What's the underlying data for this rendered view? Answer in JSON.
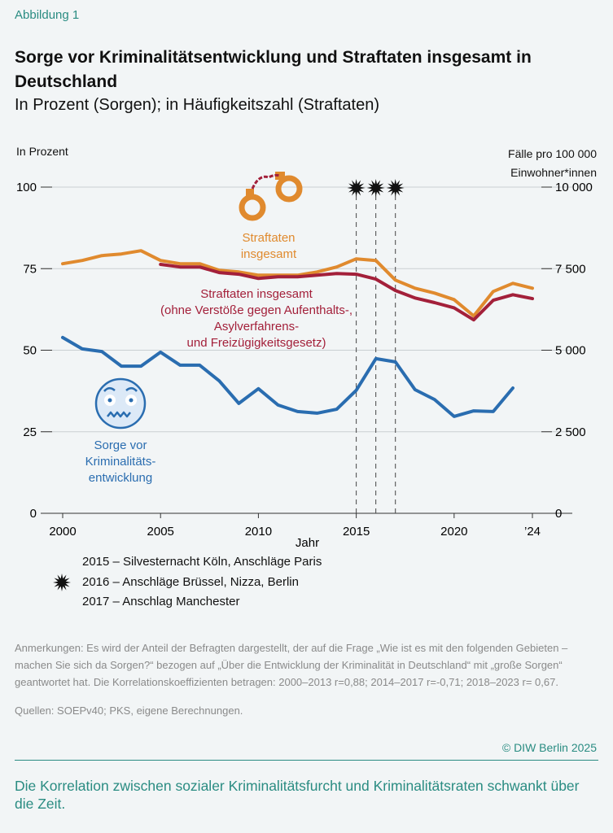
{
  "figure_label": "Abbildung 1",
  "title": "Sorge vor Kriminalitätsentwicklung und Straftaten insgesamt in Deutschland",
  "subtitle": "In Prozent (Sorgen); in Häufigkeitszahl (Straftaten)",
  "legend_events": [
    "2015 – Silvesternacht Köln, Anschläge Paris",
    "2016 – Anschläge Brüssel, Nizza, Berlin",
    "2017 – Anschlag Manchester"
  ],
  "notes": "Anmerkungen: Es wird der Anteil der Befragten dargestellt, der auf die Frage „Wie ist es mit den folgenden Gebieten – machen Sie sich da Sorgen?“ bezogen auf „Über die Entwicklung der Kriminalität in Deutschland“ mit „große Sorgen“ geantwortet hat. Die Korrelationskoeffizienten betragen: 2000–2013 r=0,88; 2014–2017 r=-0,71; 2018–2023 r= 0,67.",
  "sources": "Quellen: SOEPv40; PKS, eigene Berechnungen.",
  "copyright": "© DIW Berlin 2025",
  "takeaway": "Die Korrelation zwischen sozialer Kriminalitätsfurcht und Kriminalitätsraten schwankt über die Zeit.",
  "colors": {
    "accent": "#2a8c82",
    "orange": "#e08a2e",
    "red": "#a3203a",
    "blue": "#2a6db0"
  },
  "chart_data": {
    "type": "line",
    "xlabel": "Jahr",
    "ylabel_left": "In Prozent",
    "ylabel_right": [
      "Fälle pro 100 000",
      "Einwohner*innen"
    ],
    "ylim_left": [
      0,
      100
    ],
    "ylim_right": [
      0,
      10000
    ],
    "xlim": [
      2000,
      2024
    ],
    "x_ticks": [
      "2000",
      "2005",
      "2010",
      "2015",
      "2020",
      "’24"
    ],
    "x_tick_values": [
      2000,
      2005,
      2010,
      2015,
      2020,
      2024
    ],
    "y_ticks_left": [
      "0",
      "25",
      "50",
      "75",
      "100"
    ],
    "y_ticks_right": [
      "0",
      "2 500",
      "5 000",
      "7 500",
      "10 000"
    ],
    "event_years": [
      2015,
      2016,
      2017
    ],
    "series": [
      {
        "name": "Straftaten insgesamt",
        "label_lines": [
          "Straftaten",
          "insgesamt"
        ],
        "axis": "right",
        "color": "#e08a2e",
        "x": [
          2000,
          2001,
          2002,
          2003,
          2004,
          2005,
          2006,
          2007,
          2008,
          2009,
          2010,
          2011,
          2012,
          2013,
          2014,
          2015,
          2016,
          2017,
          2018,
          2019,
          2020,
          2021,
          2022,
          2023,
          2024
        ],
        "values": [
          7650,
          7750,
          7900,
          7950,
          8050,
          7750,
          7650,
          7650,
          7450,
          7400,
          7300,
          7300,
          7300,
          7400,
          7550,
          7800,
          7750,
          7150,
          6900,
          6750,
          6550,
          6050,
          6800,
          7050,
          6900
        ]
      },
      {
        "name": "Straftaten insgesamt (ohne Verstöße gegen Aufenthalts-, Asylverfahrens- und Freizügigkeitsgesetz)",
        "label_lines": [
          "Straftaten insgesamt",
          "(ohne Verstöße gegen Aufenthalts-,",
          "Asylverfahrens-",
          "und Freizügigkeitsgesetz)"
        ],
        "axis": "right",
        "color": "#a3203a",
        "x": [
          2005,
          2006,
          2007,
          2008,
          2009,
          2010,
          2011,
          2012,
          2013,
          2014,
          2015,
          2016,
          2017,
          2018,
          2019,
          2020,
          2021,
          2022,
          2023,
          2024
        ],
        "values": [
          7630,
          7550,
          7550,
          7380,
          7330,
          7200,
          7250,
          7250,
          7300,
          7350,
          7330,
          7180,
          6830,
          6600,
          6460,
          6300,
          5930,
          6530,
          6700,
          6580
        ]
      },
      {
        "name": "Sorge vor Kriminalitätsentwicklung",
        "label_lines": [
          "Sorge vor",
          "Kriminalitäts-",
          "entwicklung"
        ],
        "axis": "left",
        "color": "#2a6db0",
        "x": [
          2000,
          2001,
          2002,
          2003,
          2004,
          2005,
          2006,
          2007,
          2008,
          2009,
          2010,
          2011,
          2012,
          2013,
          2014,
          2015,
          2016,
          2017,
          2018,
          2019,
          2020,
          2021,
          2022,
          2023
        ],
        "values": [
          53.9,
          50.4,
          49.6,
          45.1,
          45.1,
          49.4,
          45.4,
          45.4,
          40.6,
          33.7,
          38.2,
          33.2,
          31.2,
          30.7,
          31.9,
          37.7,
          47.4,
          46.4,
          37.9,
          34.9,
          29.7,
          31.4,
          31.2,
          38.4
        ]
      }
    ]
  }
}
